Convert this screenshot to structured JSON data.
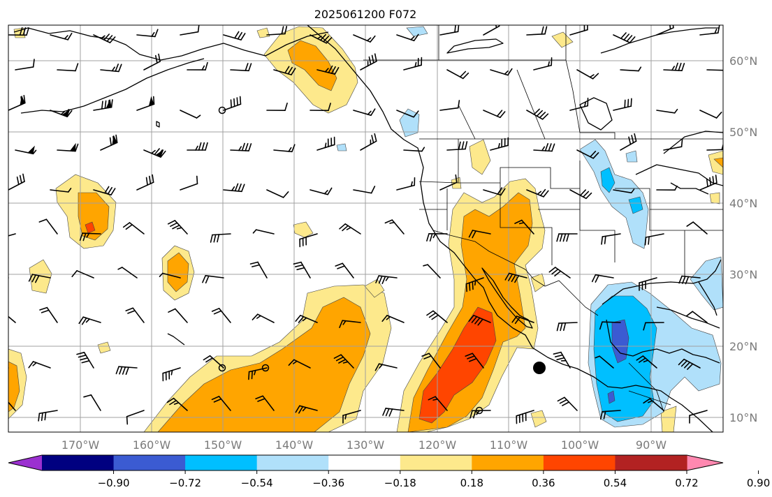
{
  "title": "2025061200 F072",
  "lon_ticks": [
    "170°W",
    "160°W",
    "150°W",
    "140°W",
    "130°W",
    "120°W",
    "110°W",
    "100°W",
    "90°W"
  ],
  "lat_ticks": [
    "60°N",
    "50°N",
    "40°N",
    "30°N",
    "20°N",
    "10°N"
  ],
  "colorbar": {
    "ticks": [
      "−0.90",
      "−0.72",
      "−0.54",
      "−0.36",
      "−0.18",
      "0.18",
      "0.36",
      "0.54",
      "0.72",
      "0.90"
    ],
    "colors": [
      "#9b30d0",
      "#000080",
      "#3b5bd2",
      "#00bfff",
      "#b0e0fa",
      "#ffffff",
      "#fde98c",
      "#ffa500",
      "#ff4500",
      "#b22222",
      "#ff88b0"
    ],
    "extend": "both"
  },
  "map": {
    "projection": "PlateCarree",
    "lon_range": [
      -180,
      -80
    ],
    "lat_range": [
      7,
      64
    ],
    "gridlines": true,
    "wind_barbs": true
  }
}
